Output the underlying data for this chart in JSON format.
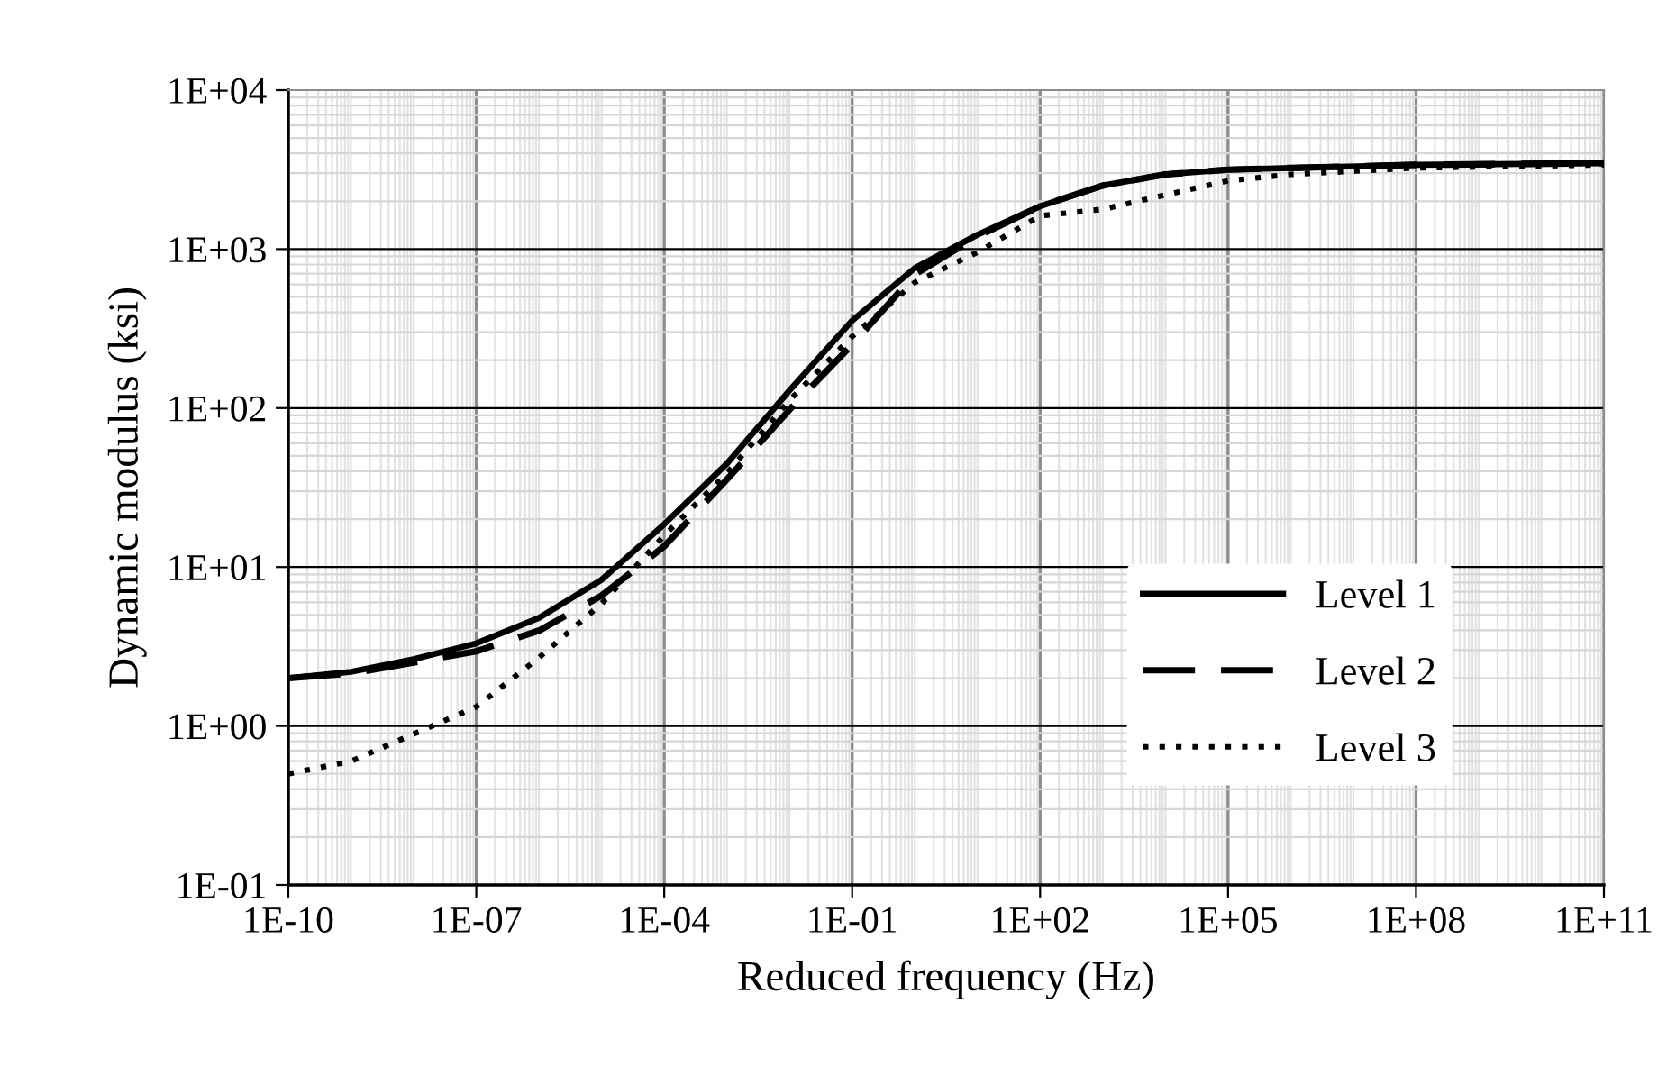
{
  "chart_data": {
    "type": "line",
    "xlabel": "Reduced frequency (Hz)",
    "ylabel": "Dynamic modulus (ksi)",
    "log": "xy",
    "grid": true,
    "legend": "lower right",
    "marker": "none",
    "x": [
      1e-10,
      1e-09,
      1e-08,
      1e-07,
      1e-06,
      1e-05,
      0.0001,
      0.001,
      0.01,
      0.1,
      1,
      10,
      100,
      1000,
      10000,
      100000,
      1000000,
      100000000,
      100000000000
    ],
    "xlim": [
      1e-10,
      100000000000.0
    ],
    "xticks": [
      {
        "value": 1e-10,
        "label": "1E-10"
      },
      {
        "value": 1e-07,
        "label": "1E-07"
      },
      {
        "value": 0.0001,
        "label": "1E-04"
      },
      {
        "value": 0.1,
        "label": "1E-01"
      },
      {
        "value": 100,
        "label": "1E+02"
      },
      {
        "value": 100000,
        "label": "1E+05"
      },
      {
        "value": 100000000,
        "label": "1E+08"
      },
      {
        "value": 100000000000,
        "label": "1E+11"
      }
    ],
    "ylim": [
      0.1,
      10000
    ],
    "yticks": [
      {
        "value": 0.1,
        "label": "1E-01"
      },
      {
        "value": 1,
        "label": "1E+00"
      },
      {
        "value": 10,
        "label": "1E+01"
      },
      {
        "value": 100,
        "label": "1E+02"
      },
      {
        "value": 1000,
        "label": "1E+03"
      },
      {
        "value": 10000,
        "label": "1E+04"
      }
    ],
    "series": [
      {
        "name": "Level 1",
        "color": "#000000",
        "line_style": "solid",
        "values": [
          2.0,
          2.19,
          2.63,
          3.31,
          4.79,
          8.32,
          18.6,
          44.7,
          129,
          355,
          759,
          1230,
          1860,
          2510,
          2950,
          3160,
          3240,
          3390,
          3470
        ]
      },
      {
        "name": "Level 2",
        "color": "#000000",
        "line_style": "dashed",
        "values": [
          2.0,
          2.14,
          2.51,
          2.95,
          3.98,
          6.61,
          13.5,
          35.5,
          97.7,
          251,
          692,
          1200,
          1860,
          2510,
          2950,
          3160,
          3240,
          3390,
          3470
        ]
      },
      {
        "name": "Level 3",
        "color": "#000000",
        "line_style": "dotted",
        "values": [
          0.5,
          0.6,
          0.89,
          1.32,
          2.69,
          5.89,
          15.8,
          38.9,
          112,
          282,
          617,
          955,
          1620,
          1780,
          2190,
          2690,
          2950,
          3240,
          3390
        ]
      }
    ]
  }
}
